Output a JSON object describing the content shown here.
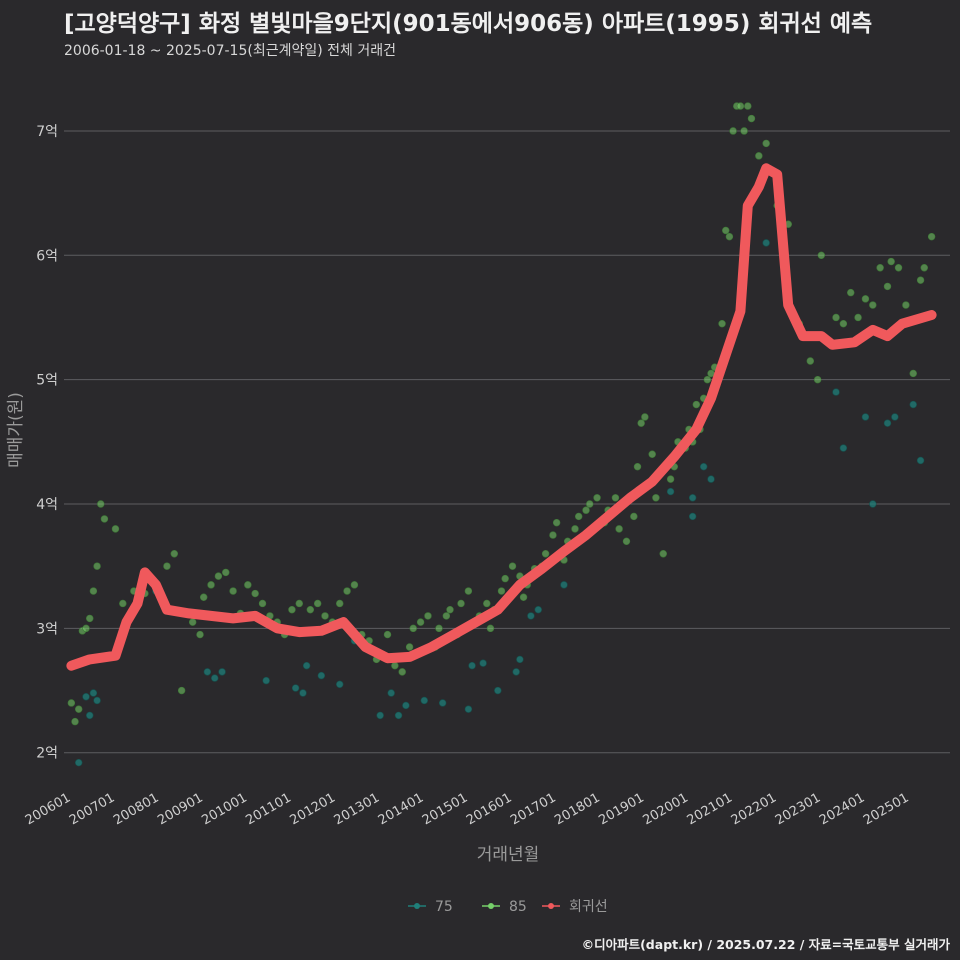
{
  "title": "[고양덕양구] 화정 별빛마을9단지(901동에서906동) 아파트(1995) 회귀선 예측",
  "subtitle": "2006-01-18 ~ 2025-07-15(최근계약일) 전체 거래건",
  "caption": "©디아파트(dapt.kr) / 2025.07.22 / 자료=국토교통부 실거래가",
  "colors": {
    "background": "#2a292c",
    "grid": "#5d5d60",
    "series_75": "#1f7f7a",
    "series_85": "#76d06a",
    "regression": "#f0595c"
  },
  "chart_data": {
    "type": "scatter",
    "xlabel": "거래년월",
    "ylabel": "매매가(원)",
    "x_range": [
      "2005-11",
      "2025-12"
    ],
    "y_range": [
      1.7,
      7.45
    ],
    "y_ticks": [
      {
        "value": 2,
        "label": "2억"
      },
      {
        "value": 3,
        "label": "3억"
      },
      {
        "value": 4,
        "label": "4억"
      },
      {
        "value": 5,
        "label": "5억"
      },
      {
        "value": 6,
        "label": "6억"
      },
      {
        "value": 7,
        "label": "7억"
      }
    ],
    "x_ticks": [
      {
        "value": "2006-01",
        "label": "200601"
      },
      {
        "value": "2007-01",
        "label": "200701"
      },
      {
        "value": "2008-01",
        "label": "200801"
      },
      {
        "value": "2009-01",
        "label": "200901"
      },
      {
        "value": "2010-01",
        "label": "201001"
      },
      {
        "value": "2011-01",
        "label": "201101"
      },
      {
        "value": "2012-01",
        "label": "201201"
      },
      {
        "value": "2013-01",
        "label": "201301"
      },
      {
        "value": "2014-01",
        "label": "201401"
      },
      {
        "value": "2015-01",
        "label": "201501"
      },
      {
        "value": "2016-01",
        "label": "201601"
      },
      {
        "value": "2017-01",
        "label": "201701"
      },
      {
        "value": "2018-01",
        "label": "201801"
      },
      {
        "value": "2019-01",
        "label": "201901"
      },
      {
        "value": "2020-01",
        "label": "202001"
      },
      {
        "value": "2021-01",
        "label": "202101"
      },
      {
        "value": "2022-01",
        "label": "202201"
      },
      {
        "value": "2023-01",
        "label": "202301"
      },
      {
        "value": "2024-01",
        "label": "202401"
      },
      {
        "value": "2025-01",
        "label": "202501"
      }
    ],
    "legend": {
      "placement": "bottom",
      "entries": [
        {
          "label": "75",
          "series": "75"
        },
        {
          "label": "85",
          "series": "85"
        },
        {
          "label": "회귀선",
          "series": "regression"
        }
      ]
    },
    "series": [
      {
        "name": "75",
        "points": [
          [
            "2006-03",
            1.92
          ],
          [
            "2006-05",
            2.45
          ],
          [
            "2006-07",
            2.48
          ],
          [
            "2006-08",
            2.42
          ],
          [
            "2006-06",
            2.3
          ],
          [
            "2007-12",
            3.3
          ],
          [
            "2009-02",
            2.65
          ],
          [
            "2009-04",
            2.6
          ],
          [
            "2009-06",
            2.65
          ],
          [
            "2010-06",
            2.58
          ],
          [
            "2011-02",
            2.52
          ],
          [
            "2011-04",
            2.48
          ],
          [
            "2011-05",
            2.7
          ],
          [
            "2011-09",
            2.62
          ],
          [
            "2012-02",
            2.55
          ],
          [
            "2012-06",
            2.9
          ],
          [
            "2013-01",
            2.3
          ],
          [
            "2013-04",
            2.48
          ],
          [
            "2013-06",
            2.3
          ],
          [
            "2013-08",
            2.38
          ],
          [
            "2014-01",
            2.42
          ],
          [
            "2014-06",
            2.4
          ],
          [
            "2015-01",
            2.35
          ],
          [
            "2015-02",
            2.7
          ],
          [
            "2015-05",
            2.72
          ],
          [
            "2015-09",
            2.5
          ],
          [
            "2016-02",
            2.65
          ],
          [
            "2016-03",
            2.75
          ],
          [
            "2016-06",
            3.1
          ],
          [
            "2016-08",
            3.15
          ],
          [
            "2017-03",
            3.35
          ],
          [
            "2019-08",
            4.1
          ],
          [
            "2020-02",
            4.05
          ],
          [
            "2020-02",
            3.9
          ],
          [
            "2020-05",
            4.3
          ],
          [
            "2020-07",
            4.2
          ],
          [
            "2021-10",
            6.1
          ],
          [
            "2023-05",
            4.9
          ],
          [
            "2023-07",
            4.45
          ],
          [
            "2024-01",
            4.7
          ],
          [
            "2024-03",
            4.0
          ],
          [
            "2024-07",
            4.65
          ],
          [
            "2024-09",
            4.7
          ],
          [
            "2025-02",
            4.8
          ],
          [
            "2025-04",
            4.35
          ]
        ]
      },
      {
        "name": "85",
        "points": [
          [
            "2006-01",
            2.4
          ],
          [
            "2006-02",
            2.25
          ],
          [
            "2006-03",
            2.35
          ],
          [
            "2006-04",
            2.98
          ],
          [
            "2006-05",
            3.0
          ],
          [
            "2006-06",
            3.08
          ],
          [
            "2006-07",
            3.3
          ],
          [
            "2006-08",
            3.5
          ],
          [
            "2006-09",
            4.0
          ],
          [
            "2006-10",
            3.88
          ],
          [
            "2007-01",
            3.8
          ],
          [
            "2007-03",
            3.2
          ],
          [
            "2007-06",
            3.3
          ],
          [
            "2007-09",
            3.28
          ],
          [
            "2008-01",
            3.3
          ],
          [
            "2008-03",
            3.5
          ],
          [
            "2008-05",
            3.6
          ],
          [
            "2008-07",
            2.5
          ],
          [
            "2008-10",
            3.05
          ],
          [
            "2008-12",
            2.95
          ],
          [
            "2009-01",
            3.25
          ],
          [
            "2009-03",
            3.35
          ],
          [
            "2009-05",
            3.42
          ],
          [
            "2009-07",
            3.45
          ],
          [
            "2009-09",
            3.3
          ],
          [
            "2009-11",
            3.12
          ],
          [
            "2010-01",
            3.35
          ],
          [
            "2010-03",
            3.28
          ],
          [
            "2010-05",
            3.2
          ],
          [
            "2010-07",
            3.1
          ],
          [
            "2010-09",
            3.05
          ],
          [
            "2010-11",
            2.95
          ],
          [
            "2011-01",
            3.15
          ],
          [
            "2011-03",
            3.2
          ],
          [
            "2011-06",
            3.15
          ],
          [
            "2011-08",
            3.2
          ],
          [
            "2011-10",
            3.1
          ],
          [
            "2011-12",
            3.05
          ],
          [
            "2012-02",
            3.2
          ],
          [
            "2012-04",
            3.3
          ],
          [
            "2012-06",
            3.35
          ],
          [
            "2012-08",
            2.95
          ],
          [
            "2012-10",
            2.9
          ],
          [
            "2012-12",
            2.75
          ],
          [
            "2013-02",
            2.78
          ],
          [
            "2013-03",
            2.95
          ],
          [
            "2013-05",
            2.7
          ],
          [
            "2013-07",
            2.65
          ],
          [
            "2013-09",
            2.85
          ],
          [
            "2013-10",
            3.0
          ],
          [
            "2013-12",
            3.05
          ],
          [
            "2014-02",
            3.1
          ],
          [
            "2014-04",
            2.85
          ],
          [
            "2014-05",
            3.0
          ],
          [
            "2014-07",
            3.1
          ],
          [
            "2014-08",
            3.15
          ],
          [
            "2014-10",
            2.95
          ],
          [
            "2014-11",
            3.2
          ],
          [
            "2015-01",
            3.3
          ],
          [
            "2015-03",
            3.05
          ],
          [
            "2015-04",
            3.1
          ],
          [
            "2015-06",
            3.2
          ],
          [
            "2015-07",
            3.0
          ],
          [
            "2015-08",
            3.15
          ],
          [
            "2015-10",
            3.3
          ],
          [
            "2015-11",
            3.4
          ],
          [
            "2016-01",
            3.5
          ],
          [
            "2016-03",
            3.42
          ],
          [
            "2016-04",
            3.25
          ],
          [
            "2016-05",
            3.35
          ],
          [
            "2016-07",
            3.48
          ],
          [
            "2016-09",
            3.5
          ],
          [
            "2016-10",
            3.6
          ],
          [
            "2016-12",
            3.75
          ],
          [
            "2017-01",
            3.85
          ],
          [
            "2017-03",
            3.55
          ],
          [
            "2017-04",
            3.7
          ],
          [
            "2017-06",
            3.8
          ],
          [
            "2017-07",
            3.9
          ],
          [
            "2017-09",
            3.95
          ],
          [
            "2017-10",
            4.0
          ],
          [
            "2017-12",
            4.05
          ],
          [
            "2018-02",
            3.85
          ],
          [
            "2018-03",
            3.95
          ],
          [
            "2018-05",
            4.05
          ],
          [
            "2018-06",
            3.8
          ],
          [
            "2018-08",
            3.7
          ],
          [
            "2018-10",
            3.9
          ],
          [
            "2018-11",
            4.3
          ],
          [
            "2018-12",
            4.65
          ],
          [
            "2019-01",
            4.7
          ],
          [
            "2019-03",
            4.4
          ],
          [
            "2019-04",
            4.05
          ],
          [
            "2019-06",
            3.6
          ],
          [
            "2019-08",
            4.2
          ],
          [
            "2019-09",
            4.3
          ],
          [
            "2019-10",
            4.5
          ],
          [
            "2019-12",
            4.45
          ],
          [
            "2020-01",
            4.6
          ],
          [
            "2020-02",
            4.5
          ],
          [
            "2020-03",
            4.8
          ],
          [
            "2020-04",
            4.6
          ],
          [
            "2020-05",
            4.85
          ],
          [
            "2020-06",
            5.0
          ],
          [
            "2020-07",
            5.05
          ],
          [
            "2020-08",
            5.1
          ],
          [
            "2020-10",
            5.45
          ],
          [
            "2020-11",
            6.2
          ],
          [
            "2020-12",
            6.15
          ],
          [
            "2021-01",
            7.0
          ],
          [
            "2021-02",
            7.2
          ],
          [
            "2021-03",
            7.2
          ],
          [
            "2021-04",
            7.0
          ],
          [
            "2021-05",
            7.2
          ],
          [
            "2021-06",
            7.1
          ],
          [
            "2021-08",
            6.8
          ],
          [
            "2021-10",
            6.9
          ],
          [
            "2022-01",
            6.4
          ],
          [
            "2022-04",
            6.25
          ],
          [
            "2022-07",
            5.45
          ],
          [
            "2022-10",
            5.15
          ],
          [
            "2022-12",
            5.0
          ],
          [
            "2023-01",
            6.0
          ],
          [
            "2023-03",
            5.3
          ],
          [
            "2023-05",
            5.5
          ],
          [
            "2023-07",
            5.45
          ],
          [
            "2023-09",
            5.7
          ],
          [
            "2023-11",
            5.5
          ],
          [
            "2024-01",
            5.65
          ],
          [
            "2024-03",
            5.6
          ],
          [
            "2024-05",
            5.9
          ],
          [
            "2024-07",
            5.75
          ],
          [
            "2024-08",
            5.95
          ],
          [
            "2024-10",
            5.9
          ],
          [
            "2024-12",
            5.6
          ],
          [
            "2025-02",
            5.05
          ],
          [
            "2025-04",
            5.8
          ],
          [
            "2025-05",
            5.9
          ],
          [
            "2025-07",
            6.15
          ]
        ]
      },
      {
        "name": "regression",
        "points": [
          [
            "2006-01",
            2.7
          ],
          [
            "2006-06",
            2.75
          ],
          [
            "2007-01",
            2.78
          ],
          [
            "2007-04",
            3.05
          ],
          [
            "2007-07",
            3.2
          ],
          [
            "2007-09",
            3.45
          ],
          [
            "2007-12",
            3.35
          ],
          [
            "2008-03",
            3.15
          ],
          [
            "2008-09",
            3.12
          ],
          [
            "2009-03",
            3.1
          ],
          [
            "2009-09",
            3.08
          ],
          [
            "2010-03",
            3.1
          ],
          [
            "2010-09",
            3.0
          ],
          [
            "2011-03",
            2.97
          ],
          [
            "2011-09",
            2.98
          ],
          [
            "2012-03",
            3.05
          ],
          [
            "2012-09",
            2.85
          ],
          [
            "2013-03",
            2.76
          ],
          [
            "2013-09",
            2.77
          ],
          [
            "2014-03",
            2.85
          ],
          [
            "2014-09",
            2.95
          ],
          [
            "2015-03",
            3.05
          ],
          [
            "2015-09",
            3.15
          ],
          [
            "2016-03",
            3.35
          ],
          [
            "2016-09",
            3.48
          ],
          [
            "2017-03",
            3.62
          ],
          [
            "2017-09",
            3.75
          ],
          [
            "2018-03",
            3.9
          ],
          [
            "2018-09",
            4.05
          ],
          [
            "2019-03",
            4.18
          ],
          [
            "2019-09",
            4.38
          ],
          [
            "2020-03",
            4.6
          ],
          [
            "2020-07",
            4.85
          ],
          [
            "2020-11",
            5.2
          ],
          [
            "2021-03",
            5.55
          ],
          [
            "2021-05",
            6.4
          ],
          [
            "2021-08",
            6.55
          ],
          [
            "2021-10",
            6.7
          ],
          [
            "2022-01",
            6.65
          ],
          [
            "2022-04",
            5.6
          ],
          [
            "2022-08",
            5.35
          ],
          [
            "2023-01",
            5.35
          ],
          [
            "2023-04",
            5.28
          ],
          [
            "2023-10",
            5.3
          ],
          [
            "2024-03",
            5.4
          ],
          [
            "2024-07",
            5.35
          ],
          [
            "2024-11",
            5.45
          ],
          [
            "2025-07",
            5.52
          ]
        ]
      }
    ]
  }
}
